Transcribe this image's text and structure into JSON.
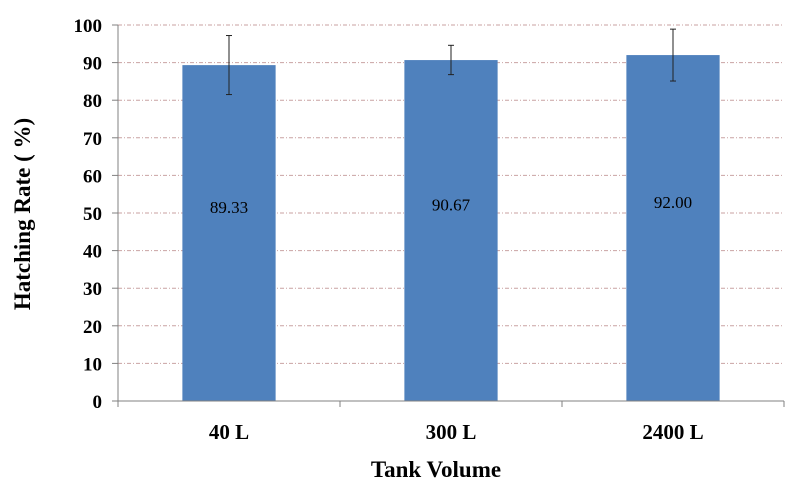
{
  "chart_data": {
    "type": "bar",
    "categories": [
      "40 L",
      "300 L",
      "2400 L"
    ],
    "values": [
      89.33,
      90.67,
      92.0
    ],
    "data_labels": [
      "89.33",
      "90.67",
      "92.00"
    ],
    "error_bars": [
      {
        "high": 97.2,
        "low": 81.5
      },
      {
        "high": 94.6,
        "low": 86.8
      },
      {
        "high": 98.9,
        "low": 85.1
      }
    ],
    "xlabel": "Tank Volume",
    "ylabel": "Hatching Rate ( %)",
    "ylim": [
      0,
      100
    ],
    "yticks": [
      0,
      10,
      20,
      30,
      40,
      50,
      60,
      70,
      80,
      90,
      100
    ],
    "grid": true,
    "colors": {
      "bar": "#4f81bd",
      "grid": "#c9a2a2",
      "axis": "#808080"
    }
  }
}
